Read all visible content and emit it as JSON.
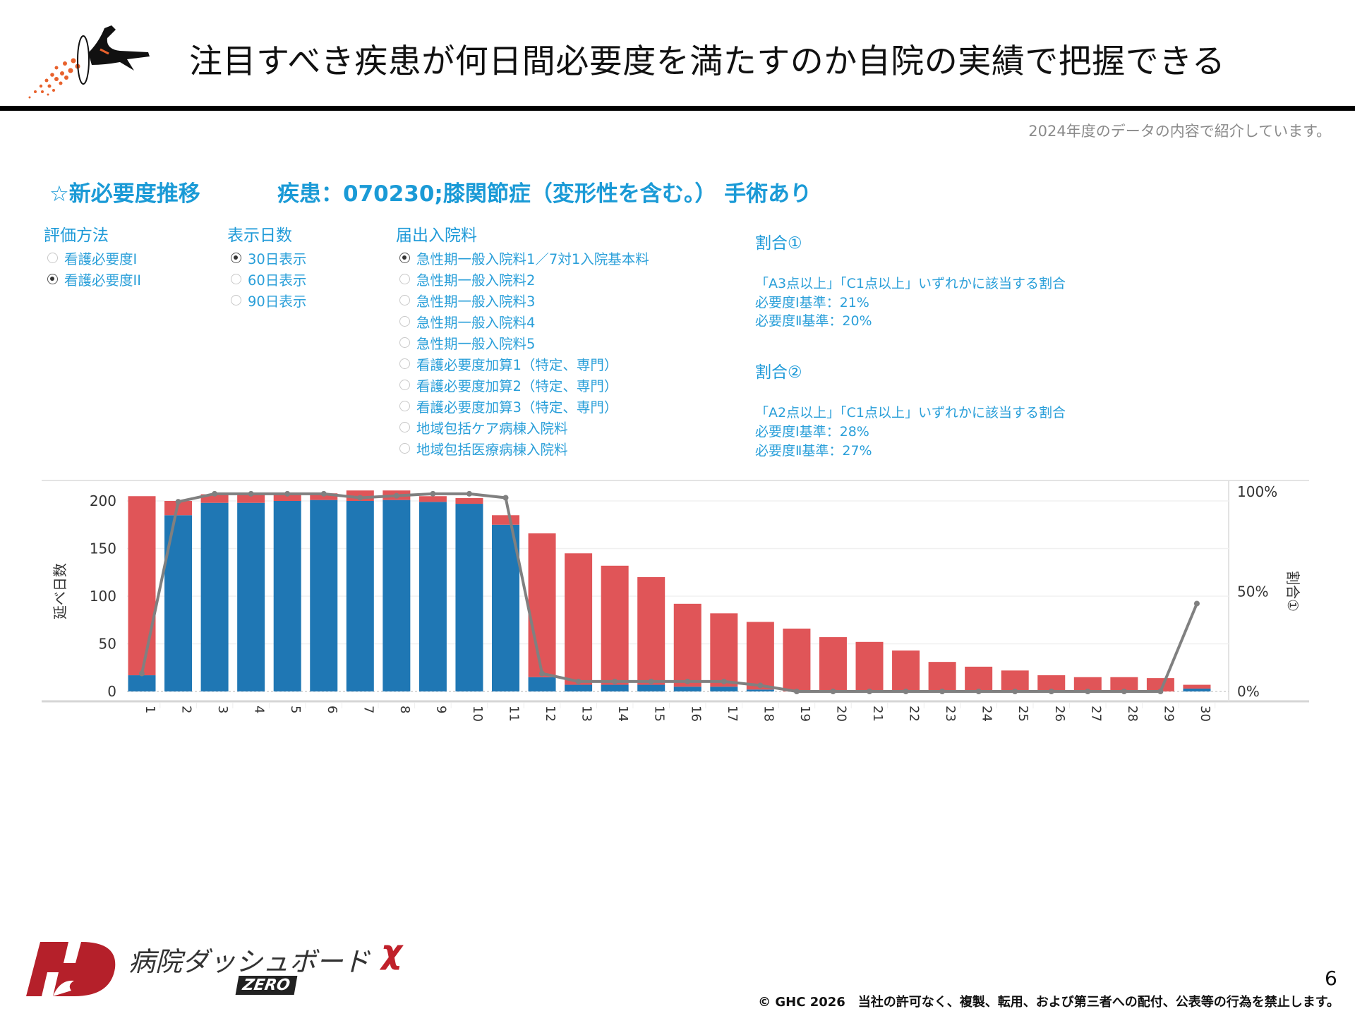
{
  "header": {
    "title": "注目すべき疾患が何日間必要度を満たすのか自院の実績で把握できる",
    "note": "2024年度のデータの内容で紹介しています。"
  },
  "dashboard": {
    "section_title": "☆新必要度推移",
    "disease": "疾患：070230;膝関節症（変形性を含む。） 手術あり",
    "filters": {
      "evaluation": {
        "title": "評価方法",
        "options": [
          {
            "label": "看護必要度I",
            "selected": false
          },
          {
            "label": "看護必要度II",
            "selected": true
          }
        ]
      },
      "days": {
        "title": "表示日数",
        "options": [
          {
            "label": "30日表示",
            "selected": true
          },
          {
            "label": "60日表示",
            "selected": false
          },
          {
            "label": "90日表示",
            "selected": false
          }
        ]
      },
      "fee": {
        "title": "届出入院料",
        "options": [
          {
            "label": "急性期一般入院料1／7対1入院基本料",
            "selected": true
          },
          {
            "label": "急性期一般入院料2",
            "selected": false
          },
          {
            "label": "急性期一般入院料3",
            "selected": false
          },
          {
            "label": "急性期一般入院料4",
            "selected": false
          },
          {
            "label": "急性期一般入院料5",
            "selected": false
          },
          {
            "label": "看護必要度加算1（特定、専門）",
            "selected": false
          },
          {
            "label": "看護必要度加算2（特定、専門）",
            "selected": false
          },
          {
            "label": "看護必要度加算3（特定、専門）",
            "selected": false
          },
          {
            "label": "地域包括ケア病棟入院料",
            "selected": false
          },
          {
            "label": "地域包括医療病棟入院料",
            "selected": false
          }
        ]
      }
    },
    "ratio1": {
      "title": "割合①",
      "desc": "「A3点以上」「C1点以上」いずれかに該当する割合",
      "std1": "必要度Ⅰ基準：21%",
      "std2": "必要度Ⅱ基準：20%"
    },
    "ratio2": {
      "title": "割合②",
      "desc": "「A2点以上」「C1点以上」いずれかに該当する割合",
      "std1": "必要度Ⅰ基準：28%",
      "std2": "必要度Ⅱ基準：27%"
    }
  },
  "chart_data": {
    "type": "bar",
    "stacked": true,
    "categories": [
      "1",
      "2",
      "3",
      "4",
      "5",
      "6",
      "7",
      "8",
      "9",
      "10",
      "11",
      "12",
      "13",
      "14",
      "15",
      "16",
      "17",
      "18",
      "19",
      "20",
      "21",
      "22",
      "23",
      "24",
      "25",
      "26",
      "27",
      "28",
      "29",
      "30"
    ],
    "ylabel": "延べ日数",
    "ylabel_right": "割合①",
    "ylim": [
      0,
      210
    ],
    "yticks": [
      "0",
      "50",
      "100",
      "150",
      "200"
    ],
    "yticks_right": [
      "0%",
      "50%",
      "100%"
    ],
    "ylim_right": [
      0,
      1
    ],
    "grid": true,
    "colors": {
      "meets": "#1f77b4",
      "not_meets": "#e05558",
      "ratio_line": "#808080"
    },
    "series": [
      {
        "values": [
          17,
          185,
          198,
          198,
          200,
          201,
          200,
          201,
          199,
          197,
          175,
          15,
          7,
          7,
          7,
          5,
          5,
          2,
          0,
          0,
          0,
          0,
          0,
          0,
          0,
          0,
          0,
          0,
          0,
          3
        ]
      },
      {
        "values": [
          188,
          15,
          9,
          9,
          8,
          7,
          11,
          10,
          6,
          6,
          10,
          151,
          138,
          125,
          113,
          87,
          77,
          71,
          66,
          57,
          52,
          43,
          31,
          26,
          22,
          17,
          15,
          15,
          14,
          4
        ]
      }
    ],
    "line": {
      "values": [
        0.09,
        0.95,
        0.99,
        0.99,
        0.99,
        0.99,
        0.97,
        0.98,
        0.99,
        0.99,
        0.97,
        0.09,
        0.05,
        0.05,
        0.05,
        0.05,
        0.05,
        0.03,
        0,
        0,
        0,
        0,
        0,
        0,
        0,
        0,
        0,
        0,
        0,
        0.44
      ]
    }
  },
  "footer": {
    "brand": "病院ダッシュボード",
    "brand_mark": "χ",
    "brand_sub": "ZERO",
    "page": "6",
    "copyright": "© GHC 2026　当社の許可なく、複製、転用、および第三者への配付、公表等の行為を禁止します。"
  }
}
